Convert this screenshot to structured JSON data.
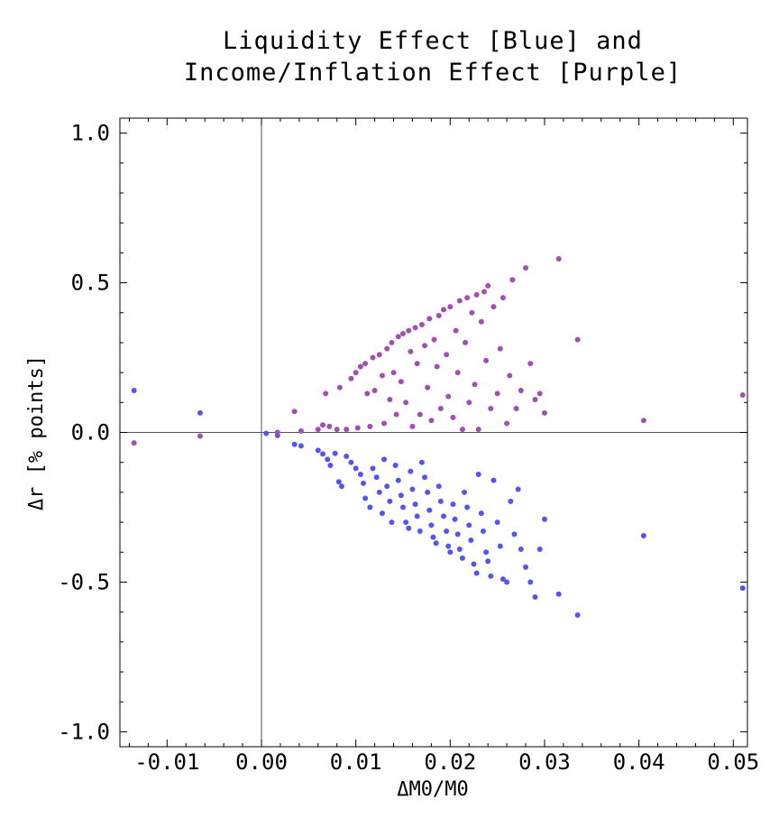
{
  "chart_data": {
    "type": "scatter",
    "title_lines": [
      "Liquidity Effect [Blue] and",
      "Income/Inflation Effect [Purple]"
    ],
    "xlabel": "ΔM0/M0",
    "ylabel": "Δr [% points]",
    "xlim": [
      -0.015,
      0.0515
    ],
    "ylim": [
      -1.05,
      1.05
    ],
    "x_ticks": [
      -0.01,
      0.0,
      0.01,
      0.02,
      0.03,
      0.04,
      0.05
    ],
    "x_tick_labels": [
      "-0.01",
      "0.00",
      "0.01",
      "0.02",
      "0.03",
      "0.04",
      "0.05"
    ],
    "y_ticks": [
      -1.0,
      -0.5,
      0.0,
      0.5,
      1.0
    ],
    "y_tick_labels": [
      "-1.0",
      "-0.5",
      "0.0",
      "0.5",
      "1.0"
    ],
    "grid": false,
    "origin_axes": true,
    "colors": {
      "blue": "#5555ee",
      "purple": "#a050b0",
      "axis": "#555555",
      "frame": "#000000"
    },
    "series": [
      {
        "color": "blue",
        "points": [
          [
            -0.0135,
            0.14
          ],
          [
            -0.0065,
            0.065
          ],
          [
            0.0005,
            -0.003
          ],
          [
            0.0017,
            -0.01
          ],
          [
            0.0035,
            -0.04
          ],
          [
            0.0042,
            -0.045
          ],
          [
            0.006,
            -0.06
          ],
          [
            0.0065,
            -0.072
          ],
          [
            0.007,
            -0.09
          ],
          [
            0.0073,
            -0.11
          ],
          [
            0.0078,
            -0.07
          ],
          [
            0.0082,
            -0.165
          ],
          [
            0.0085,
            -0.18
          ],
          [
            0.009,
            -0.08
          ],
          [
            0.0095,
            -0.1
          ],
          [
            0.01,
            -0.12
          ],
          [
            0.0105,
            -0.14
          ],
          [
            0.0108,
            -0.17
          ],
          [
            0.011,
            -0.22
          ],
          [
            0.0115,
            -0.25
          ],
          [
            0.0118,
            -0.12
          ],
          [
            0.0122,
            -0.15
          ],
          [
            0.0125,
            -0.2
          ],
          [
            0.0128,
            -0.27
          ],
          [
            0.013,
            -0.09
          ],
          [
            0.0133,
            -0.18
          ],
          [
            0.0136,
            -0.23
          ],
          [
            0.0138,
            -0.3
          ],
          [
            0.0142,
            -0.11
          ],
          [
            0.0145,
            -0.16
          ],
          [
            0.0148,
            -0.21
          ],
          [
            0.015,
            -0.25
          ],
          [
            0.0153,
            -0.3
          ],
          [
            0.0156,
            -0.32
          ],
          [
            0.0158,
            -0.13
          ],
          [
            0.016,
            -0.19
          ],
          [
            0.0163,
            -0.24
          ],
          [
            0.0165,
            -0.28
          ],
          [
            0.0168,
            -0.33
          ],
          [
            0.017,
            -0.1
          ],
          [
            0.0173,
            -0.15
          ],
          [
            0.0176,
            -0.2
          ],
          [
            0.0178,
            -0.26
          ],
          [
            0.018,
            -0.31
          ],
          [
            0.0182,
            -0.35
          ],
          [
            0.0185,
            -0.37
          ],
          [
            0.0188,
            -0.18
          ],
          [
            0.019,
            -0.23
          ],
          [
            0.0193,
            -0.28
          ],
          [
            0.0196,
            -0.33
          ],
          [
            0.0198,
            -0.38
          ],
          [
            0.02,
            -0.4
          ],
          [
            0.0203,
            -0.24
          ],
          [
            0.0205,
            -0.29
          ],
          [
            0.0208,
            -0.34
          ],
          [
            0.021,
            -0.39
          ],
          [
            0.0213,
            -0.42
          ],
          [
            0.0215,
            -0.2
          ],
          [
            0.0218,
            -0.25
          ],
          [
            0.022,
            -0.31
          ],
          [
            0.0222,
            -0.36
          ],
          [
            0.0225,
            -0.44
          ],
          [
            0.0228,
            -0.47
          ],
          [
            0.023,
            -0.14
          ],
          [
            0.0233,
            -0.27
          ],
          [
            0.0235,
            -0.33
          ],
          [
            0.0238,
            -0.4
          ],
          [
            0.024,
            -0.43
          ],
          [
            0.0243,
            -0.48
          ],
          [
            0.0246,
            -0.16
          ],
          [
            0.025,
            -0.3
          ],
          [
            0.0253,
            -0.38
          ],
          [
            0.0256,
            -0.49
          ],
          [
            0.026,
            -0.5
          ],
          [
            0.0264,
            -0.23
          ],
          [
            0.0268,
            -0.34
          ],
          [
            0.0272,
            -0.19
          ],
          [
            0.0275,
            -0.39
          ],
          [
            0.028,
            -0.45
          ],
          [
            0.0285,
            -0.5
          ],
          [
            0.029,
            -0.55
          ],
          [
            0.0295,
            -0.39
          ],
          [
            0.03,
            -0.29
          ],
          [
            0.0315,
            -0.54
          ],
          [
            0.0335,
            -0.61
          ],
          [
            0.0405,
            -0.345
          ],
          [
            0.051,
            -0.52
          ]
        ]
      },
      {
        "color": "purple",
        "points": [
          [
            -0.0135,
            -0.035
          ],
          [
            -0.0065,
            -0.012
          ],
          [
            0.0017,
            0.0
          ],
          [
            0.0035,
            0.07
          ],
          [
            0.0042,
            0.005
          ],
          [
            0.006,
            0.01
          ],
          [
            0.0065,
            0.025
          ],
          [
            0.0068,
            0.13
          ],
          [
            0.0072,
            0.02
          ],
          [
            0.008,
            0.01
          ],
          [
            0.0083,
            0.15
          ],
          [
            0.009,
            0.01
          ],
          [
            0.0095,
            0.18
          ],
          [
            0.01,
            0.2
          ],
          [
            0.0102,
            0.015
          ],
          [
            0.0105,
            0.22
          ],
          [
            0.011,
            0.23
          ],
          [
            0.0112,
            0.13
          ],
          [
            0.0115,
            0.02
          ],
          [
            0.0118,
            0.25
          ],
          [
            0.012,
            0.14
          ],
          [
            0.0125,
            0.26
          ],
          [
            0.0128,
            0.19
          ],
          [
            0.013,
            0.03
          ],
          [
            0.0133,
            0.28
          ],
          [
            0.0136,
            0.11
          ],
          [
            0.0138,
            0.3
          ],
          [
            0.014,
            0.2
          ],
          [
            0.0143,
            0.06
          ],
          [
            0.0145,
            0.32
          ],
          [
            0.0148,
            0.17
          ],
          [
            0.015,
            0.33
          ],
          [
            0.0153,
            0.1
          ],
          [
            0.0156,
            0.34
          ],
          [
            0.0158,
            0.27
          ],
          [
            0.016,
            0.02
          ],
          [
            0.0163,
            0.35
          ],
          [
            0.0165,
            0.23
          ],
          [
            0.0168,
            0.06
          ],
          [
            0.017,
            0.36
          ],
          [
            0.0173,
            0.29
          ],
          [
            0.0176,
            0.15
          ],
          [
            0.0178,
            0.38
          ],
          [
            0.018,
            0.04
          ],
          [
            0.0183,
            0.31
          ],
          [
            0.0186,
            0.22
          ],
          [
            0.0188,
            0.39
          ],
          [
            0.019,
            0.08
          ],
          [
            0.0193,
            0.41
          ],
          [
            0.0196,
            0.26
          ],
          [
            0.0198,
            0.12
          ],
          [
            0.02,
            0.42
          ],
          [
            0.0203,
            0.05
          ],
          [
            0.0206,
            0.34
          ],
          [
            0.0208,
            0.2
          ],
          [
            0.021,
            0.44
          ],
          [
            0.0213,
            0.01
          ],
          [
            0.0216,
            0.3
          ],
          [
            0.0218,
            0.45
          ],
          [
            0.022,
            0.1
          ],
          [
            0.0223,
            0.4
          ],
          [
            0.0226,
            0.16
          ],
          [
            0.0228,
            0.46
          ],
          [
            0.023,
            0.01
          ],
          [
            0.0233,
            0.37
          ],
          [
            0.0236,
            0.47
          ],
          [
            0.0238,
            0.24
          ],
          [
            0.024,
            0.49
          ],
          [
            0.0243,
            0.08
          ],
          [
            0.0246,
            0.42
          ],
          [
            0.025,
            0.13
          ],
          [
            0.0253,
            0.28
          ],
          [
            0.0256,
            0.45
          ],
          [
            0.026,
            0.03
          ],
          [
            0.0263,
            0.19
          ],
          [
            0.0266,
            0.51
          ],
          [
            0.027,
            0.08
          ],
          [
            0.0275,
            0.14
          ],
          [
            0.028,
            0.55
          ],
          [
            0.0285,
            0.23
          ],
          [
            0.029,
            0.11
          ],
          [
            0.0295,
            0.13
          ],
          [
            0.03,
            0.065
          ],
          [
            0.0315,
            0.58
          ],
          [
            0.0335,
            0.31
          ],
          [
            0.0405,
            0.04
          ],
          [
            0.051,
            0.125
          ]
        ]
      }
    ]
  }
}
